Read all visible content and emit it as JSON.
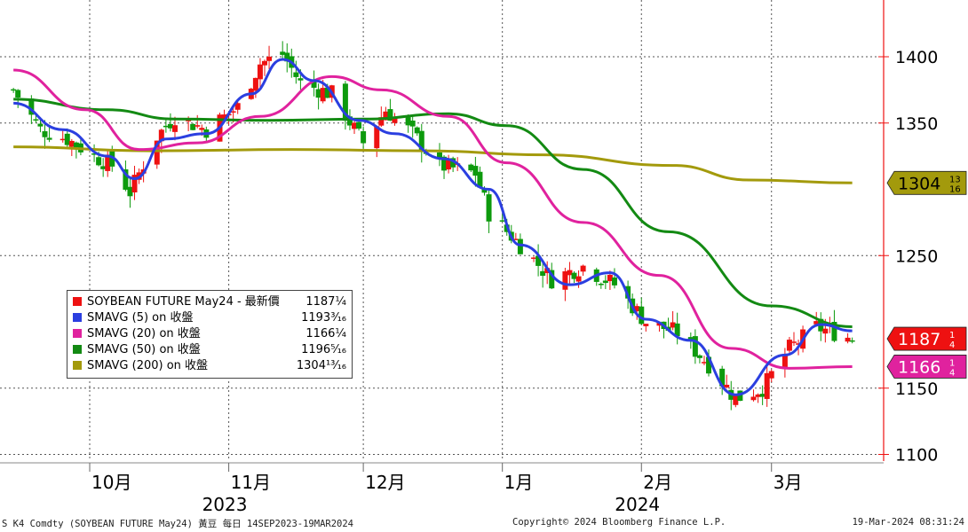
{
  "chart_data": {
    "type": "candlestick",
    "ylim": [
      1090,
      1425
    ],
    "y_ticks": [
      1100,
      1150,
      1250,
      1350,
      1400
    ],
    "y_tick_labels": [
      "1100",
      "1150",
      "1250",
      "1350",
      "1400"
    ],
    "months": [
      {
        "label": "10月",
        "date": "2023-10-01"
      },
      {
        "label": "11月",
        "date": "2023-11-01"
      },
      {
        "label": "12月",
        "date": "2023-12-01"
      },
      {
        "label": "1月",
        "date": "2024-01-01"
      },
      {
        "label": "2月",
        "date": "2024-02-01"
      },
      {
        "label": "3月",
        "date": "2024-03-01"
      }
    ],
    "years": [
      {
        "label": "2023",
        "date": "2023-11-01"
      },
      {
        "label": "2024",
        "date": "2024-02-01"
      }
    ],
    "price_path": [
      {
        "date": "2023-09-14",
        "close": 1375
      },
      {
        "date": "2023-09-20",
        "close": 1345
      },
      {
        "date": "2023-09-26",
        "close": 1338
      },
      {
        "date": "2023-10-02",
        "close": 1325
      },
      {
        "date": "2023-10-06",
        "close": 1318
      },
      {
        "date": "2023-10-10",
        "close": 1298
      },
      {
        "date": "2023-10-16",
        "close": 1340
      },
      {
        "date": "2023-10-20",
        "close": 1355
      },
      {
        "date": "2023-10-27",
        "close": 1345
      },
      {
        "date": "2023-11-03",
        "close": 1362
      },
      {
        "date": "2023-11-08",
        "close": 1395
      },
      {
        "date": "2023-11-13",
        "close": 1402
      },
      {
        "date": "2023-11-17",
        "close": 1380
      },
      {
        "date": "2023-11-24",
        "close": 1372
      },
      {
        "date": "2023-12-01",
        "close": 1335
      },
      {
        "date": "2023-12-06",
        "close": 1360
      },
      {
        "date": "2023-12-12",
        "close": 1342
      },
      {
        "date": "2023-12-18",
        "close": 1318
      },
      {
        "date": "2023-12-26",
        "close": 1312
      },
      {
        "date": "2023-12-29",
        "close": 1282
      },
      {
        "date": "2024-01-05",
        "close": 1258
      },
      {
        "date": "2024-01-12",
        "close": 1232
      },
      {
        "date": "2024-01-19",
        "close": 1242
      },
      {
        "date": "2024-01-26",
        "close": 1228
      },
      {
        "date": "2024-02-02",
        "close": 1200
      },
      {
        "date": "2024-02-09",
        "close": 1192
      },
      {
        "date": "2024-02-16",
        "close": 1168
      },
      {
        "date": "2024-02-22",
        "close": 1142
      },
      {
        "date": "2024-02-28",
        "close": 1150
      },
      {
        "date": "2024-03-05",
        "close": 1180
      },
      {
        "date": "2024-03-11",
        "close": 1196
      },
      {
        "date": "2024-03-15",
        "close": 1192
      },
      {
        "date": "2024-03-19",
        "close": 1187.25
      }
    ],
    "ma_lines": {
      "sma5": {
        "color": "#2b3fe0",
        "points": [
          [
            "2023-09-14",
            1365
          ],
          [
            "2023-09-25",
            1345
          ],
          [
            "2023-10-05",
            1325
          ],
          [
            "2023-10-11",
            1308
          ],
          [
            "2023-10-18",
            1338
          ],
          [
            "2023-10-27",
            1342
          ],
          [
            "2023-11-06",
            1372
          ],
          [
            "2023-11-13",
            1398
          ],
          [
            "2023-11-20",
            1382
          ],
          [
            "2023-11-30",
            1352
          ],
          [
            "2023-12-08",
            1342
          ],
          [
            "2023-12-19",
            1323
          ],
          [
            "2023-12-29",
            1300
          ],
          [
            "2024-01-05",
            1258
          ],
          [
            "2024-01-16",
            1228
          ],
          [
            "2024-01-25",
            1237
          ],
          [
            "2024-02-02",
            1202
          ],
          [
            "2024-02-12",
            1186
          ],
          [
            "2024-02-22",
            1145
          ],
          [
            "2024-03-04",
            1175
          ],
          [
            "2024-03-12",
            1198
          ],
          [
            "2024-03-19",
            1193.1875
          ]
        ]
      },
      "sma20": {
        "color": "#e0229e",
        "points": [
          [
            "2023-09-14",
            1390
          ],
          [
            "2023-09-30",
            1360
          ],
          [
            "2023-10-12",
            1330
          ],
          [
            "2023-10-25",
            1335
          ],
          [
            "2023-11-08",
            1355
          ],
          [
            "2023-11-24",
            1385
          ],
          [
            "2023-12-05",
            1375
          ],
          [
            "2023-12-20",
            1355
          ],
          [
            "2024-01-02",
            1320
          ],
          [
            "2024-01-19",
            1275
          ],
          [
            "2024-02-05",
            1235
          ],
          [
            "2024-02-21",
            1180
          ],
          [
            "2024-03-05",
            1165
          ],
          [
            "2024-03-19",
            1166.25
          ]
        ]
      },
      "sma50": {
        "color": "#138a13",
        "points": [
          [
            "2023-09-14",
            1368
          ],
          [
            "2023-10-05",
            1360
          ],
          [
            "2023-10-20",
            1353
          ],
          [
            "2023-11-10",
            1352
          ],
          [
            "2023-12-01",
            1353
          ],
          [
            "2023-12-20",
            1357
          ],
          [
            "2024-01-02",
            1348
          ],
          [
            "2024-01-19",
            1315
          ],
          [
            "2024-02-07",
            1268
          ],
          [
            "2024-03-01",
            1212
          ],
          [
            "2024-03-19",
            1196.3125
          ]
        ]
      },
      "sma200": {
        "color": "#a39a0c",
        "points": [
          [
            "2023-09-14",
            1332
          ],
          [
            "2023-10-15",
            1329
          ],
          [
            "2023-11-15",
            1330
          ],
          [
            "2023-12-15",
            1329
          ],
          [
            "2024-01-10",
            1326
          ],
          [
            "2024-02-08",
            1318
          ],
          [
            "2024-02-25",
            1307
          ],
          [
            "2024-03-19",
            1304.8125
          ]
        ]
      }
    },
    "price_flags": [
      {
        "text": "1304",
        "frac_num": "13",
        "frac_den": "16",
        "value": 1304.8125,
        "bg": "#a39a0c",
        "fg": "#000000"
      },
      {
        "text": "1187",
        "frac_num": "1",
        "frac_den": "4",
        "value": 1187.25,
        "bg": "#ee1111",
        "fg": "#ffffff"
      },
      {
        "text": "1166",
        "frac_num": "1",
        "frac_den": "4",
        "value": 1166.25,
        "bg": "#e0229e",
        "fg": "#ffffff"
      }
    ]
  },
  "legend": [
    {
      "name": "SOYBEAN FUTURE May24 - 最新價",
      "value": "1187¼",
      "color": "#ee1111"
    },
    {
      "name": "SMAVG (5)  on 收盤",
      "value": "1193³⁄₁₆",
      "color": "#2b3fe0"
    },
    {
      "name": "SMAVG (20)  on 收盤",
      "value": "1166¼",
      "color": "#e0229e"
    },
    {
      "name": "SMAVG (50)  on 收盤",
      "value": "1196⁵⁄₁₆",
      "color": "#138a13"
    },
    {
      "name": "SMAVG (200)  on 收盤",
      "value": "1304¹³⁄₁₆",
      "color": "#a39a0c"
    }
  ],
  "footer": {
    "left": "S K4 Comdty (SOYBEAN FUTURE    May24) 黃豆  每日 14SEP2023-19MAR2024",
    "center": "Copyright© 2024 Bloomberg Finance L.P.",
    "right": "19-Mar-2024 08:31:24"
  }
}
